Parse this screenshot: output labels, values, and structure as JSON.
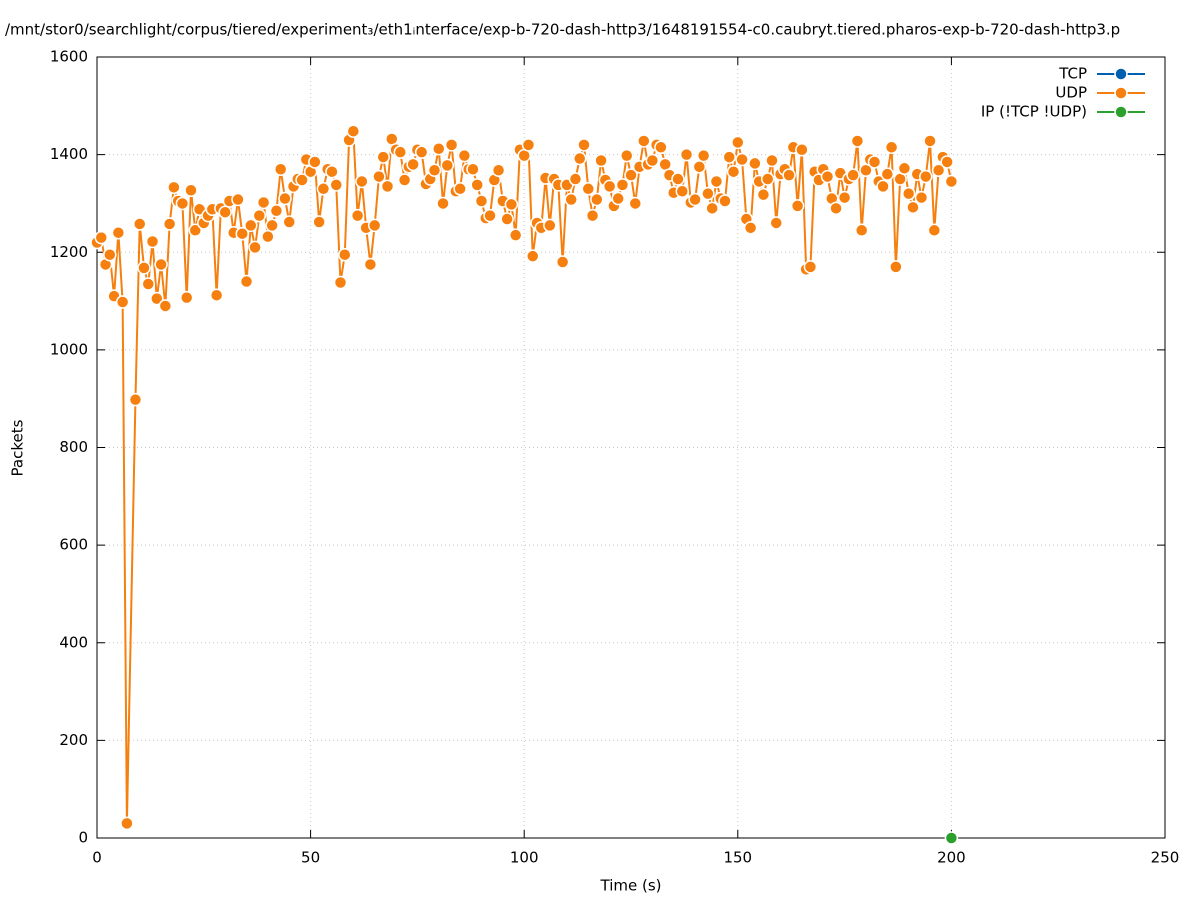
{
  "chart_data": {
    "type": "line",
    "title": "/mnt/stor0/searchlight/corpus/tiered/experiment₃/eth1ᵢnterface/exp-b-720-dash-http3/1648191554-c0.caubryt.tiered.pharos-exp-b-720-dash-http3.p",
    "xlabel": "Time (s)",
    "ylabel": "Packets",
    "xlim": [
      0,
      250
    ],
    "xticks": [
      0,
      50,
      100,
      150,
      200,
      250
    ],
    "ylim": [
      0,
      1600
    ],
    "yticks": [
      0,
      200,
      400,
      600,
      800,
      1000,
      1200,
      1400,
      1600
    ],
    "grid": true,
    "legend": "top-right",
    "series": [
      {
        "name": "TCP",
        "color": "#0060ad",
        "x": [],
        "values": []
      },
      {
        "name": "UDP",
        "color": "#f5800f",
        "x": [
          0,
          1,
          2,
          3,
          4,
          5,
          6,
          7,
          9,
          10,
          11,
          12,
          13,
          14,
          15,
          16,
          17,
          18,
          19,
          20,
          21,
          22,
          23,
          24,
          25,
          26,
          27,
          28,
          29,
          30,
          31,
          32,
          33,
          34,
          35,
          36,
          37,
          38,
          39,
          40,
          41,
          42,
          43,
          44,
          45,
          46,
          47,
          48,
          49,
          50,
          51,
          52,
          53,
          54,
          55,
          56,
          57,
          58,
          59,
          60,
          61,
          62,
          63,
          64,
          65,
          66,
          67,
          68,
          69,
          70,
          71,
          72,
          73,
          74,
          75,
          76,
          77,
          78,
          79,
          80,
          81,
          82,
          83,
          84,
          85,
          86,
          87,
          88,
          89,
          90,
          91,
          92,
          93,
          94,
          95,
          96,
          97,
          98,
          99,
          100,
          101,
          102,
          103,
          104,
          105,
          106,
          107,
          108,
          109,
          110,
          111,
          112,
          113,
          114,
          115,
          116,
          117,
          118,
          119,
          120,
          121,
          122,
          123,
          124,
          125,
          126,
          127,
          128,
          129,
          130,
          131,
          132,
          133,
          134,
          135,
          136,
          137,
          138,
          139,
          140,
          141,
          142,
          143,
          144,
          145,
          146,
          147,
          148,
          149,
          150,
          151,
          152,
          153,
          154,
          155,
          156,
          157,
          158,
          159,
          160,
          161,
          162,
          163,
          164,
          165,
          166,
          167,
          168,
          169,
          170,
          171,
          172,
          173,
          174,
          175,
          176,
          177,
          178,
          179,
          180,
          181,
          182,
          183,
          184,
          185,
          186,
          187,
          188,
          189,
          190,
          191,
          192,
          193,
          194,
          195,
          196,
          197,
          198,
          199,
          200
        ],
        "values": [
          1220,
          1230,
          1175,
          1195,
          1110,
          1240,
          1098,
          30,
          898,
          1258,
          1168,
          1135,
          1222,
          1105,
          1175,
          1090,
          1258,
          1333,
          1305,
          1300,
          1107,
          1327,
          1245,
          1288,
          1260,
          1275,
          1288,
          1112,
          1290,
          1282,
          1305,
          1240,
          1308,
          1238,
          1140,
          1255,
          1210,
          1275,
          1302,
          1232,
          1255,
          1285,
          1370,
          1310,
          1262,
          1335,
          1350,
          1348,
          1390,
          1365,
          1385,
          1262,
          1330,
          1370,
          1365,
          1338,
          1138,
          1195,
          1430,
          1448,
          1275,
          1345,
          1250,
          1175,
          1255,
          1355,
          1395,
          1335,
          1432,
          1410,
          1405,
          1348,
          1375,
          1380,
          1410,
          1405,
          1340,
          1350,
          1368,
          1412,
          1300,
          1378,
          1420,
          1325,
          1330,
          1398,
          1370,
          1370,
          1338,
          1305,
          1270,
          1275,
          1348,
          1368,
          1305,
          1268,
          1298,
          1235,
          1410,
          1398,
          1420,
          1192,
          1260,
          1250,
          1352,
          1255,
          1350,
          1338,
          1180,
          1338,
          1308,
          1350,
          1392,
          1420,
          1330,
          1275,
          1308,
          1388,
          1348,
          1335,
          1295,
          1310,
          1338,
          1398,
          1358,
          1300,
          1375,
          1428,
          1380,
          1388,
          1420,
          1415,
          1380,
          1358,
          1322,
          1350,
          1325,
          1400,
          1302,
          1308,
          1375,
          1398,
          1320,
          1290,
          1345,
          1310,
          1305,
          1395,
          1365,
          1425,
          1390,
          1268,
          1250,
          1382,
          1345,
          1318,
          1350,
          1388,
          1260,
          1360,
          1370,
          1358,
          1415,
          1295,
          1410,
          1165,
          1170,
          1365,
          1348,
          1370,
          1355,
          1310,
          1290,
          1362,
          1312,
          1350,
          1358,
          1428,
          1245,
          1368,
          1390,
          1385,
          1345,
          1335,
          1360,
          1415,
          1170,
          1350,
          1372,
          1320,
          1292,
          1360,
          1312,
          1355,
          1428,
          1245,
          1368,
          1395,
          1385,
          1345
        ]
      },
      {
        "name": "IP (!TCP  !UDP)",
        "color": "#2ca02c",
        "x": [
          200
        ],
        "values": [
          0
        ]
      }
    ]
  }
}
